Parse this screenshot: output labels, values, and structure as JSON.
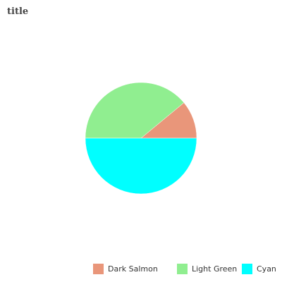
{
  "chart_data": {
    "type": "pie",
    "title": "title",
    "categories": [
      "Dark Salmon",
      "Light Green",
      "Cyan"
    ],
    "values": [
      11,
      39,
      50
    ],
    "colors": [
      "#E9967A",
      "#90EE90",
      "#00FFFF"
    ],
    "legend_position": "bottom"
  }
}
